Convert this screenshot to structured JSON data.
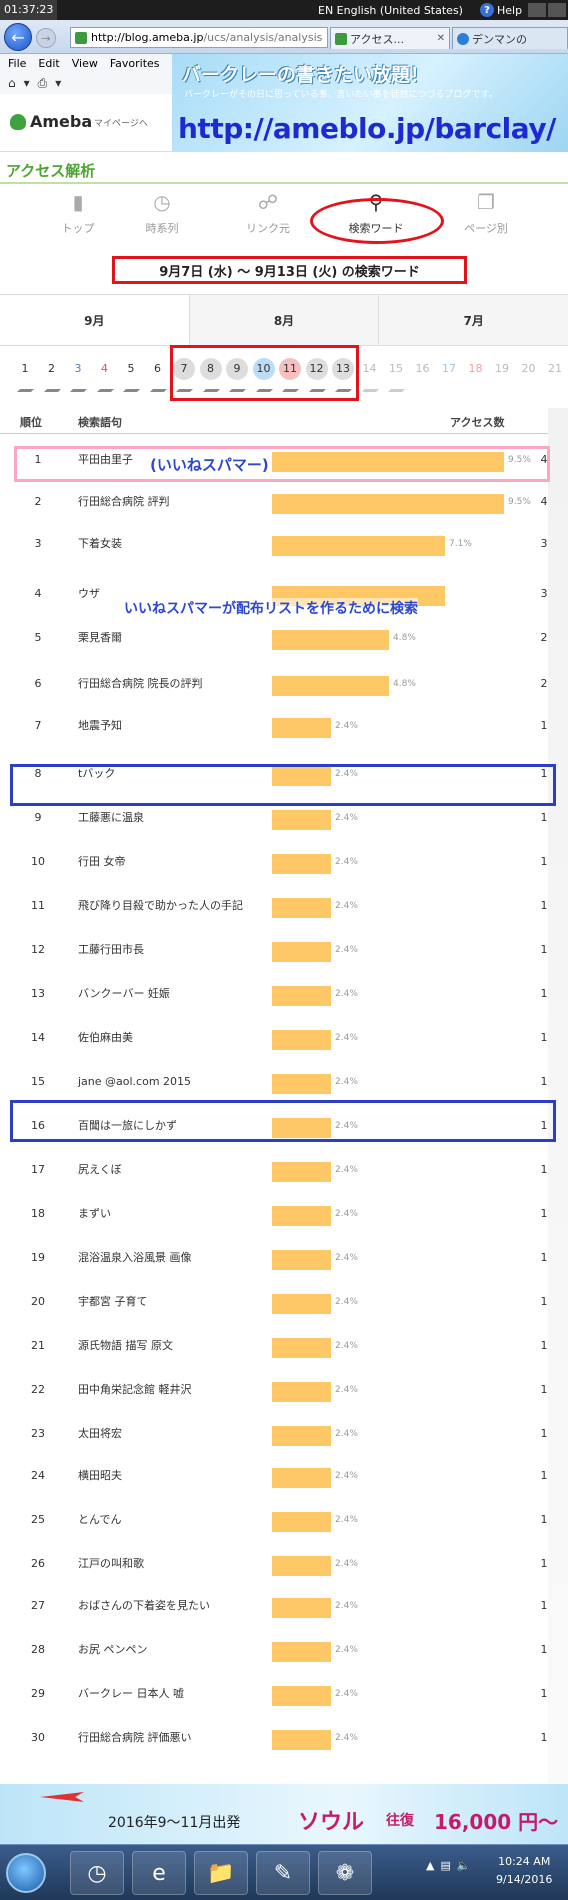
{
  "system": {
    "clock": "01:37:23",
    "language": "EN English (United States)",
    "help": "Help"
  },
  "browser": {
    "url_host": "http://blog.ameba.jp",
    "url_path": "/ucs/analysis/analysis",
    "tabs": [
      {
        "label": "アクセス..."
      },
      {
        "label": "デンマンの"
      }
    ],
    "menu": [
      "File",
      "Edit",
      "View",
      "Favorites"
    ]
  },
  "ameba": {
    "logo": "Ameba",
    "mypage": "マイページへ"
  },
  "banner": {
    "title": "バークレーの書きたい放題！",
    "subtitle": "バークレーがその日に思っている事、言いたい事を徒然につづるブログです。",
    "url": "http://ameblo.jp/barclay/"
  },
  "page": {
    "title": "アクセス解析"
  },
  "nav": {
    "items": [
      {
        "label": "トップ",
        "icon": "bar-chart-icon"
      },
      {
        "label": "時系列",
        "icon": "clock-icon"
      },
      {
        "label": "リンク元",
        "icon": "link-icon"
      },
      {
        "label": "検索ワード",
        "icon": "search-icon"
      },
      {
        "label": "ページ別",
        "icon": "pages-icon"
      }
    ],
    "active": "検索ワード"
  },
  "date_heading": "9月7日 (水) 〜 9月13日 (火) の検索ワード",
  "months": [
    "9月",
    "8月",
    "7月"
  ],
  "days": [
    {
      "n": "1",
      "type": "",
      "sel": false,
      "future": false
    },
    {
      "n": "2",
      "type": "",
      "sel": false,
      "future": false
    },
    {
      "n": "3",
      "type": "sat",
      "sel": false,
      "future": false
    },
    {
      "n": "4",
      "type": "sun",
      "sel": false,
      "future": false
    },
    {
      "n": "5",
      "type": "",
      "sel": false,
      "future": false
    },
    {
      "n": "6",
      "type": "",
      "sel": false,
      "future": false
    },
    {
      "n": "7",
      "type": "",
      "sel": true,
      "future": false
    },
    {
      "n": "8",
      "type": "",
      "sel": true,
      "future": false
    },
    {
      "n": "9",
      "type": "",
      "sel": true,
      "future": false
    },
    {
      "n": "10",
      "type": "sat",
      "sel": true,
      "future": false
    },
    {
      "n": "11",
      "type": "sun",
      "sel": true,
      "future": false
    },
    {
      "n": "12",
      "type": "",
      "sel": true,
      "future": false
    },
    {
      "n": "13",
      "type": "",
      "sel": true,
      "future": false
    },
    {
      "n": "14",
      "type": "",
      "sel": false,
      "future": true
    },
    {
      "n": "15",
      "type": "",
      "sel": false,
      "future": true
    },
    {
      "n": "16",
      "type": "",
      "sel": false,
      "future": true
    },
    {
      "n": "17",
      "type": "sat",
      "sel": false,
      "future": true
    },
    {
      "n": "18",
      "type": "sun",
      "sel": false,
      "future": true
    },
    {
      "n": "19",
      "type": "",
      "sel": false,
      "future": true
    },
    {
      "n": "20",
      "type": "",
      "sel": false,
      "future": true
    },
    {
      "n": "21",
      "type": "",
      "sel": false,
      "future": true
    }
  ],
  "table": {
    "headers": {
      "rank": "順位",
      "keyword": "検索語句",
      "count": "アクセス数"
    },
    "rows": [
      {
        "rank": "1",
        "keyword": "平田由里子",
        "pct": "9.5%",
        "share": 9.5,
        "count": "4"
      },
      {
        "rank": "2",
        "keyword": "行田総合病院 評判",
        "pct": "9.5%",
        "share": 9.5,
        "count": "4"
      },
      {
        "rank": "3",
        "keyword": "下着女装",
        "pct": "7.1%",
        "share": 7.1,
        "count": "3"
      },
      {
        "rank": "4",
        "keyword": "ウザ",
        "pct": "",
        "share": 7.1,
        "count": "3"
      },
      {
        "rank": "5",
        "keyword": "栗見香爾",
        "pct": "4.8%",
        "share": 4.8,
        "count": "2"
      },
      {
        "rank": "6",
        "keyword": "行田総合病院 院長の評判",
        "pct": "4.8%",
        "share": 4.8,
        "count": "2"
      },
      {
        "rank": "7",
        "keyword": "地震予知",
        "pct": "2.4%",
        "share": 2.4,
        "count": "1"
      },
      {
        "rank": "8",
        "keyword": "tバック",
        "pct": "2.4%",
        "share": 2.4,
        "count": "1"
      },
      {
        "rank": "9",
        "keyword": "工藤悪に温泉",
        "pct": "2.4%",
        "share": 2.4,
        "count": "1"
      },
      {
        "rank": "10",
        "keyword": "行田 女帝",
        "pct": "2.4%",
        "share": 2.4,
        "count": "1"
      },
      {
        "rank": "11",
        "keyword": "飛び降り目殺で助かった人の手記",
        "pct": "2.4%",
        "share": 2.4,
        "count": "1"
      },
      {
        "rank": "12",
        "keyword": "工藤行田市長",
        "pct": "2.4%",
        "share": 2.4,
        "count": "1"
      },
      {
        "rank": "13",
        "keyword": "バンクーバー 妊娠",
        "pct": "2.4%",
        "share": 2.4,
        "count": "1"
      },
      {
        "rank": "14",
        "keyword": "佐伯麻由美",
        "pct": "2.4%",
        "share": 2.4,
        "count": "1"
      },
      {
        "rank": "15",
        "keyword": "jane @aol.com 2015",
        "pct": "2.4%",
        "share": 2.4,
        "count": "1"
      },
      {
        "rank": "16",
        "keyword": "百聞は一旅にしかず",
        "pct": "2.4%",
        "share": 2.4,
        "count": "1"
      },
      {
        "rank": "17",
        "keyword": "尻えくぼ",
        "pct": "2.4%",
        "share": 2.4,
        "count": "1"
      },
      {
        "rank": "18",
        "keyword": "まずい",
        "pct": "2.4%",
        "share": 2.4,
        "count": "1"
      },
      {
        "rank": "19",
        "keyword": "混浴温泉入浴風景 画像",
        "pct": "2.4%",
        "share": 2.4,
        "count": "1"
      },
      {
        "rank": "20",
        "keyword": "宇都宮 子育て",
        "pct": "2.4%",
        "share": 2.4,
        "count": "1"
      },
      {
        "rank": "21",
        "keyword": "源氏物語 描写 原文",
        "pct": "2.4%",
        "share": 2.4,
        "count": "1"
      },
      {
        "rank": "22",
        "keyword": "田中角栄記念館 軽井沢",
        "pct": "2.4%",
        "share": 2.4,
        "count": "1"
      },
      {
        "rank": "23",
        "keyword": "太田将宏",
        "pct": "2.4%",
        "share": 2.4,
        "count": "1"
      },
      {
        "rank": "24",
        "keyword": "横田昭夫",
        "pct": "2.4%",
        "share": 2.4,
        "count": "1"
      },
      {
        "rank": "25",
        "keyword": "とんでん",
        "pct": "2.4%",
        "share": 2.4,
        "count": "1"
      },
      {
        "rank": "26",
        "keyword": "江戸の叫和歌",
        "pct": "2.4%",
        "share": 2.4,
        "count": "1"
      },
      {
        "rank": "27",
        "keyword": "おばさんの下着姿を見たい",
        "pct": "2.4%",
        "share": 2.4,
        "count": "1"
      },
      {
        "rank": "28",
        "keyword": "お尻 ペンペン",
        "pct": "2.4%",
        "share": 2.4,
        "count": "1"
      },
      {
        "rank": "29",
        "keyword": "バークレー 日本人 嘘",
        "pct": "2.4%",
        "share": 2.4,
        "count": "1"
      },
      {
        "rank": "30",
        "keyword": "行田総合病院 評価悪い",
        "pct": "2.4%",
        "share": 2.4,
        "count": "1"
      }
    ]
  },
  "annotations": {
    "iine": "(いいねスパマー)",
    "list": "いいねスパマーが配布リストを作るために検索"
  },
  "ad": {
    "period": "2016年9〜11月出発",
    "city": "ソウル",
    "roundtrip": "往復",
    "price": "16,000 円〜"
  },
  "taskbar": {
    "time": "10:24 AM",
    "date": "9/14/2016"
  }
}
